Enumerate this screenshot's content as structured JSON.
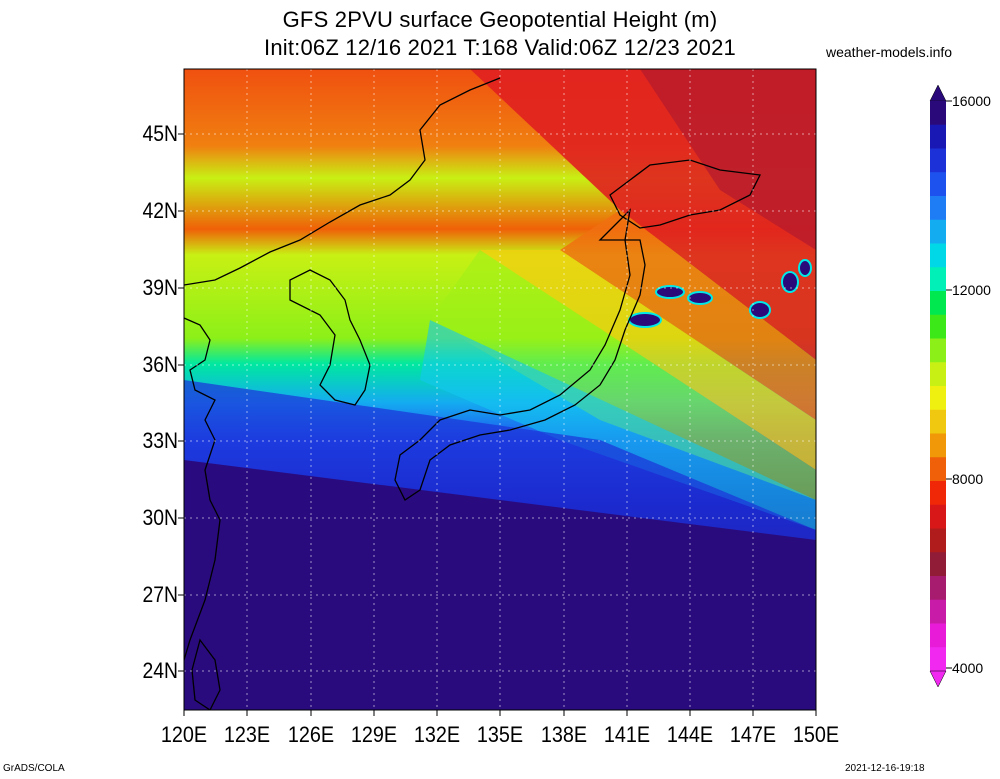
{
  "header": {
    "title_line1": "GFS 2PVU surface Geopotential Height (m)",
    "title_line2": "Init:06Z 12/16 2021 T:168 Valid:06Z 12/23 2021",
    "site": "weather-models.info"
  },
  "map": {
    "region": "Japan / Korea / East China Sea",
    "lat_labels": [
      "45N",
      "42N",
      "39N",
      "36N",
      "33N",
      "30N",
      "27N",
      "24N"
    ],
    "lon_labels": [
      "120E",
      "123E",
      "126E",
      "129E",
      "132E",
      "135E",
      "138E",
      "141E",
      "144E",
      "147E",
      "150E"
    ]
  },
  "colorbar": {
    "labels": [
      "16000",
      "12000",
      "8000",
      "4000"
    ],
    "colors": [
      "#2a0a7a",
      "#1a18b4",
      "#1c32d8",
      "#1e52ee",
      "#1e7cf4",
      "#14acf0",
      "#00d8e8",
      "#00f0b8",
      "#00e850",
      "#3ce818",
      "#8cf018",
      "#c8f014",
      "#f0f010",
      "#f0c810",
      "#f09808",
      "#f06008",
      "#f02808",
      "#d81818",
      "#b01c1c",
      "#901c38",
      "#a81c70",
      "#c81ca8",
      "#e81cd8",
      "#f028f0"
    ]
  },
  "footer": {
    "left": "GrADS/COLA",
    "right": "2021-12-16-19:18"
  }
}
